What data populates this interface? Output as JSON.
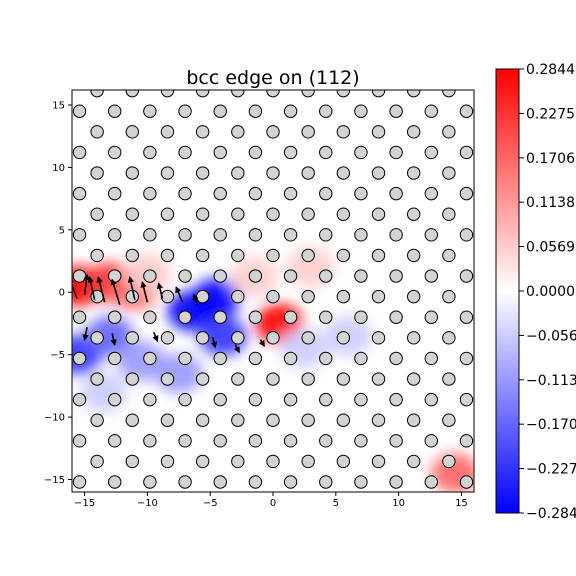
{
  "chart_data": {
    "type": "heatmap",
    "title": "bcc edge on (112)",
    "xlabel": "",
    "ylabel": "",
    "xlim": [
      -16,
      16
    ],
    "ylim": [
      -16,
      16.2
    ],
    "x_ticks": [
      -15,
      -10,
      -5,
      0,
      5,
      10,
      15
    ],
    "x_tick_labels": [
      "−15",
      "−10",
      "−5",
      "0",
      "5",
      "10",
      "15"
    ],
    "y_ticks": [
      15,
      10,
      5,
      0,
      -5,
      -10,
      -15
    ],
    "y_tick_labels": [
      "15",
      "10",
      "5",
      "0",
      "−5",
      "−10",
      "−15"
    ],
    "grid": false,
    "colormap": "bwr",
    "colorbar": {
      "vmin": -0.2844,
      "vmax": 0.2844,
      "ticks": [
        0.2844,
        0.2275,
        0.1706,
        0.1138,
        0.0569,
        0.0,
        -0.0569,
        -0.1138,
        -0.1706,
        -0.2275,
        -0.2844
      ],
      "tick_labels": [
        "0.2844",
        "0.2275",
        "0.1706",
        "0.1138",
        "0.0569",
        "0.0000",
        "−0.0569",
        "−0.1138",
        "−0.1706",
        "−0.2275",
        "−0.2844"
      ]
    },
    "atoms": {
      "marker": "circle",
      "face_color": "#d3d3d3",
      "edge_color": "#000000",
      "lattice_a1": [
        2.8,
        0.0
      ],
      "lattice_a2": [
        1.4,
        1.65
      ],
      "origin": [
        -15.4,
        -15.2
      ]
    },
    "field_regions": [
      {
        "x": -15.5,
        "y": 0.5,
        "value": 0.2844
      },
      {
        "x": -13.0,
        "y": 0.8,
        "value": 0.2275
      },
      {
        "x": -11.0,
        "y": 0.2,
        "value": 0.1706
      },
      {
        "x": -10.0,
        "y": 1.5,
        "value": 0.0569
      },
      {
        "x": -6.5,
        "y": -1.5,
        "value": -0.2844
      },
      {
        "x": -4.5,
        "y": -0.5,
        "value": -0.2844
      },
      {
        "x": -4.0,
        "y": -3.5,
        "value": -0.2275
      },
      {
        "x": 0.5,
        "y": -2.5,
        "value": 0.2844
      },
      {
        "x": -15.5,
        "y": -5.0,
        "value": -0.2275
      },
      {
        "x": -13.0,
        "y": -3.5,
        "value": -0.1706
      },
      {
        "x": -10.5,
        "y": -5.5,
        "value": -0.1138
      },
      {
        "x": -7.5,
        "y": -6.5,
        "value": -0.1138
      },
      {
        "x": -13.5,
        "y": -8.0,
        "value": -0.0569
      },
      {
        "x": -1.5,
        "y": 1.2,
        "value": 0.0569
      },
      {
        "x": 3.0,
        "y": 2.0,
        "value": 0.0569
      },
      {
        "x": 14.5,
        "y": -14.5,
        "value": 0.1706
      },
      {
        "x": 2.5,
        "y": -4.5,
        "value": -0.0569
      },
      {
        "x": 6.0,
        "y": -3.5,
        "value": -0.0569
      }
    ],
    "displacement_arrows": [
      {
        "x": -15.6,
        "y": -0.5,
        "dx": -0.6,
        "dy": 1.6
      },
      {
        "x": -15.0,
        "y": -0.2,
        "dx": 0.2,
        "dy": 1.6
      },
      {
        "x": -14.2,
        "y": -0.6,
        "dx": -0.4,
        "dy": 1.8
      },
      {
        "x": -13.4,
        "y": -0.8,
        "dx": -0.5,
        "dy": 2.0
      },
      {
        "x": -12.2,
        "y": -1.0,
        "dx": -0.6,
        "dy": 2.0
      },
      {
        "x": -11.0,
        "y": -0.6,
        "dx": -0.4,
        "dy": 1.8
      },
      {
        "x": -10.0,
        "y": -0.8,
        "dx": -0.4,
        "dy": 1.6
      },
      {
        "x": -8.8,
        "y": -0.5,
        "dx": -0.3,
        "dy": 1.2
      },
      {
        "x": -7.2,
        "y": -0.8,
        "dx": -0.5,
        "dy": 1.2
      },
      {
        "x": -6.0,
        "y": -1.0,
        "dx": -0.3,
        "dy": 0.8
      },
      {
        "x": -14.8,
        "y": -2.8,
        "dx": -0.2,
        "dy": -1.0
      },
      {
        "x": -12.8,
        "y": -3.3,
        "dx": 0.2,
        "dy": -0.9
      },
      {
        "x": -9.5,
        "y": -3.2,
        "dx": 0.3,
        "dy": -0.7
      },
      {
        "x": -4.8,
        "y": -3.6,
        "dx": 0.2,
        "dy": -0.8
      },
      {
        "x": -3.0,
        "y": -4.2,
        "dx": 0.3,
        "dy": -0.6
      },
      {
        "x": -1.0,
        "y": -3.8,
        "dx": 0.3,
        "dy": -0.5
      }
    ]
  }
}
